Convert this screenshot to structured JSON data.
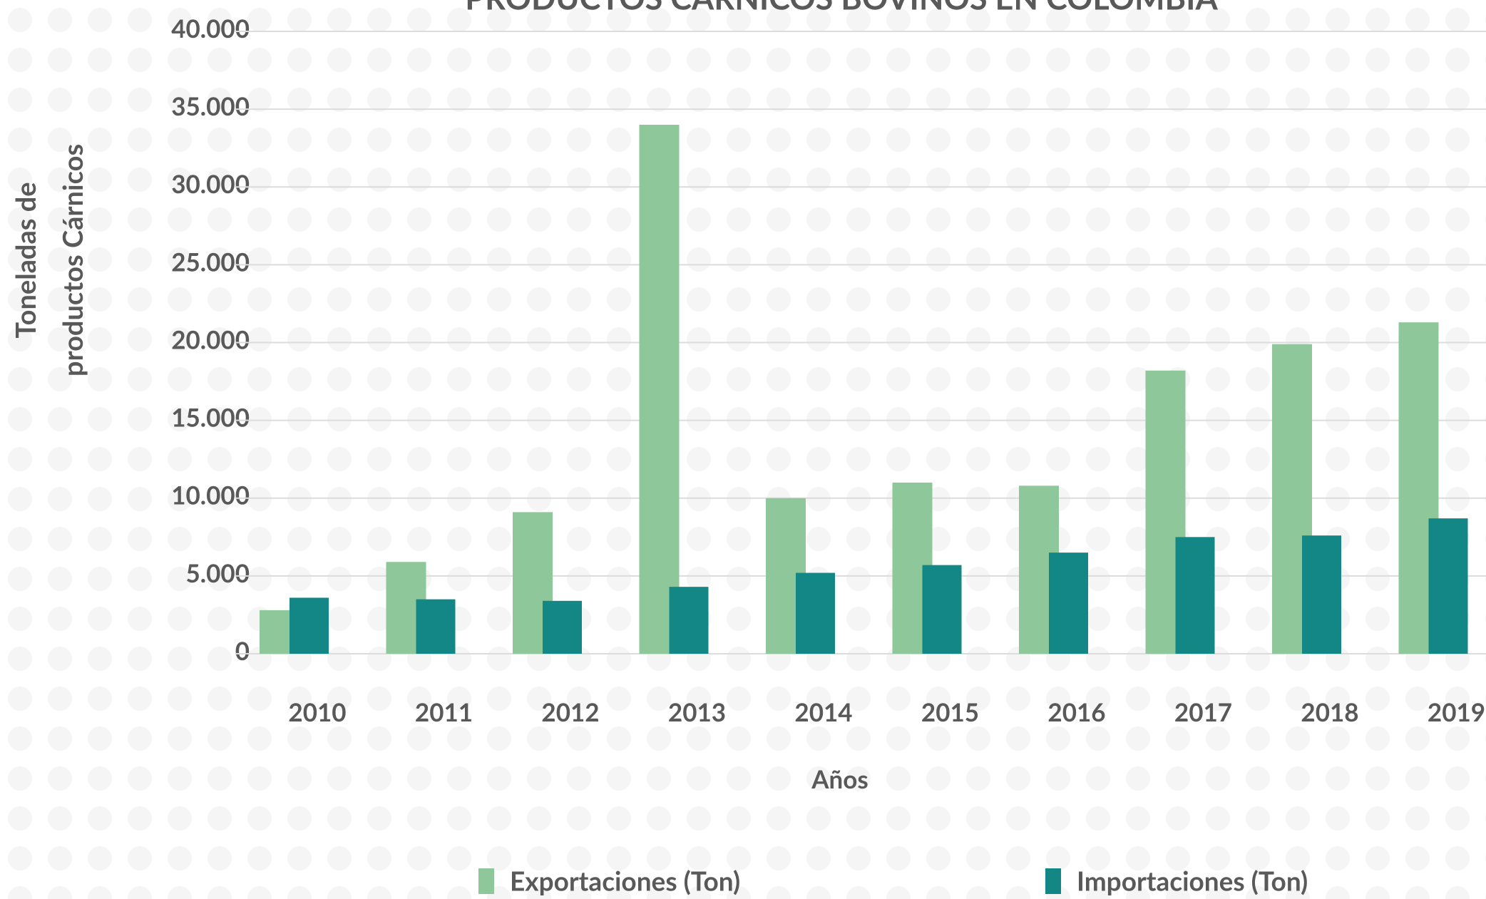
{
  "chart_data": {
    "type": "bar",
    "title": "PRODUCTOS CÁRNICOS BOVINOS EN COLOMBIA",
    "x_label": "Años",
    "y_label": [
      "Toneladas de",
      "productos Cárnicos"
    ],
    "categories": [
      "2010",
      "2011",
      "2012",
      "2013",
      "2014",
      "2015",
      "2016",
      "2017",
      "2018",
      "2019"
    ],
    "series": [
      {
        "name": "Exportaciones (Ton)",
        "color": "#8ec89a",
        "values": [
          2800,
          5900,
          9100,
          34000,
          10000,
          11000,
          10800,
          18200,
          19900,
          21300
        ]
      },
      {
        "name": "Importaciones (Ton)",
        "color": "#138786",
        "values": [
          3600,
          3500,
          3400,
          4300,
          5200,
          5700,
          6500,
          7500,
          7600,
          8700
        ]
      }
    ],
    "ylim": [
      0,
      40000
    ],
    "yticks": [
      0,
      {
        "value": 5000,
        "label": "5.000"
      },
      {
        "value": 10000,
        "label": "10.000"
      },
      {
        "value": 15000,
        "label": "15.000"
      },
      {
        "value": 20000,
        "label": "20.000"
      },
      {
        "value": 25000,
        "label": "25.000"
      },
      {
        "value": 30000,
        "label": "30.000"
      },
      {
        "value": 35000,
        "label": "35.000"
      },
      {
        "value": 40000,
        "label": "40.000"
      }
    ],
    "grid": true,
    "legend": "bottom"
  }
}
